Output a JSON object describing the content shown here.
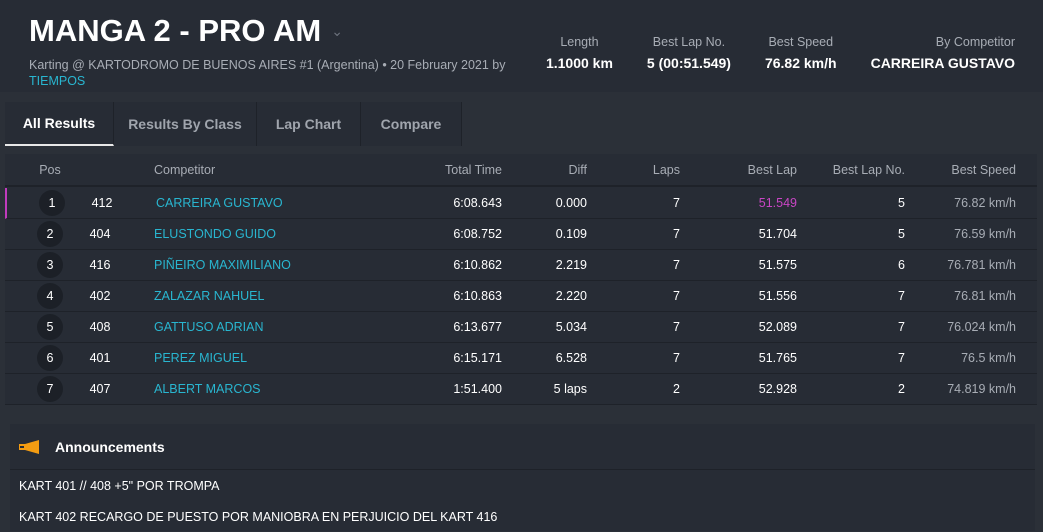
{
  "header": {
    "title": "MANGA 2 - PRO AM",
    "subtitle": "Karting @ KARTODROMO DE BUENOS AIRES #1 (Argentina) • 20 February 2021 by",
    "organizer": "TIEMPOS",
    "stats": [
      {
        "label": "Length",
        "value": "1.1000 km"
      },
      {
        "label": "Best Lap No.",
        "value": "5 (00:51.549)"
      },
      {
        "label": "Best Speed",
        "value": "76.82 km/h"
      },
      {
        "label": "By Competitor",
        "value": "CARREIRA GUSTAVO"
      }
    ]
  },
  "tabs": [
    {
      "label": "All Results",
      "active": true
    },
    {
      "label": "Results By Class"
    },
    {
      "label": "Lap Chart"
    },
    {
      "label": "Compare"
    }
  ],
  "table": {
    "columns": {
      "pos": "Pos",
      "competitor": "Competitor",
      "total": "Total Time",
      "diff": "Diff",
      "laps": "Laps",
      "best_lap": "Best Lap",
      "best_lap_no": "Best Lap No.",
      "best_speed": "Best Speed"
    },
    "rows": [
      {
        "pos": "1",
        "num": "412",
        "name": "CARREIRA GUSTAVO",
        "total": "6:08.643",
        "diff": "0.000",
        "laps": "7",
        "best_lap": "51.549",
        "best_lap_no": "5",
        "speed": "76.82 km/h"
      },
      {
        "pos": "2",
        "num": "404",
        "name": "ELUSTONDO GUIDO",
        "total": "6:08.752",
        "diff": "0.109",
        "laps": "7",
        "best_lap": "51.704",
        "best_lap_no": "5",
        "speed": "76.59 km/h"
      },
      {
        "pos": "3",
        "num": "416",
        "name": "PIÑEIRO MAXIMILIANO",
        "total": "6:10.862",
        "diff": "2.219",
        "laps": "7",
        "best_lap": "51.575",
        "best_lap_no": "6",
        "speed": "76.781 km/h"
      },
      {
        "pos": "4",
        "num": "402",
        "name": "ZALAZAR NAHUEL",
        "total": "6:10.863",
        "diff": "2.220",
        "laps": "7",
        "best_lap": "51.556",
        "best_lap_no": "7",
        "speed": "76.81 km/h"
      },
      {
        "pos": "5",
        "num": "408",
        "name": "GATTUSO ADRIAN",
        "total": "6:13.677",
        "diff": "5.034",
        "laps": "7",
        "best_lap": "52.089",
        "best_lap_no": "7",
        "speed": "76.024 km/h"
      },
      {
        "pos": "6",
        "num": "401",
        "name": "PEREZ MIGUEL",
        "total": "6:15.171",
        "diff": "6.528",
        "laps": "7",
        "best_lap": "51.765",
        "best_lap_no": "7",
        "speed": "76.5 km/h"
      },
      {
        "pos": "7",
        "num": "407",
        "name": "ALBERT MARCOS",
        "total": "1:51.400",
        "diff": "5 laps",
        "laps": "2",
        "best_lap": "52.928",
        "best_lap_no": "2",
        "speed": "74.819 km/h"
      }
    ]
  },
  "announcements": {
    "title": "Announcements",
    "items": [
      "KART 401 // 408 +5\" POR TROMPA",
      "KART 402 RECARGO DE PUESTO POR MANIOBRA EN PERJUICIO DEL KART 416"
    ]
  },
  "colors": {
    "accent": "#29b6d0",
    "best": "#c845c4",
    "icon": "#f39c12"
  }
}
